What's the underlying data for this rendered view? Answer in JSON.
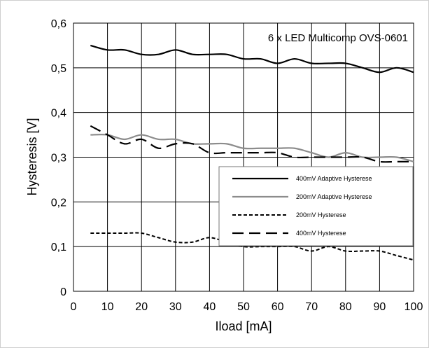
{
  "chart_data": {
    "type": "line",
    "annotation": "6 x LED Multicomp OVS-0601",
    "xlabel": "Iload [mA]",
    "ylabel": "Hysteresis [V]",
    "xlim": [
      0,
      100
    ],
    "ylim": [
      0,
      0.6
    ],
    "xticks": [
      0,
      10,
      20,
      30,
      40,
      50,
      60,
      70,
      80,
      90,
      100
    ],
    "yticks": [
      0,
      0.1,
      0.2,
      0.3,
      0.4,
      0.5,
      0.6
    ],
    "xtick_labels": [
      "0",
      "10",
      "20",
      "30",
      "40",
      "50",
      "60",
      "70",
      "80",
      "90",
      "100"
    ],
    "ytick_labels": [
      "0",
      "0,1",
      "0,2",
      "0,3",
      "0,4",
      "0,5",
      "0,6"
    ],
    "grid": true,
    "legend_position": "center-right",
    "series": [
      {
        "name": "400mV Adaptive Hysterese",
        "color": "#000000",
        "style": "solid",
        "x": [
          5,
          10,
          15,
          20,
          25,
          30,
          35,
          40,
          45,
          50,
          55,
          60,
          65,
          70,
          75,
          80,
          85,
          90,
          95,
          100
        ],
        "y": [
          0.55,
          0.54,
          0.54,
          0.53,
          0.53,
          0.54,
          0.53,
          0.53,
          0.53,
          0.52,
          0.52,
          0.51,
          0.52,
          0.51,
          0.51,
          0.51,
          0.5,
          0.49,
          0.5,
          0.49
        ]
      },
      {
        "name": "200mV Adaptive Hysterese",
        "color": "#8c8c8c",
        "style": "solid",
        "x": [
          5,
          10,
          15,
          20,
          25,
          30,
          35,
          40,
          45,
          50,
          55,
          60,
          65,
          70,
          75,
          80,
          85,
          90,
          95,
          100
        ],
        "y": [
          0.35,
          0.35,
          0.34,
          0.35,
          0.34,
          0.34,
          0.33,
          0.33,
          0.33,
          0.32,
          0.32,
          0.32,
          0.32,
          0.31,
          0.3,
          0.31,
          0.3,
          0.3,
          0.3,
          0.29
        ]
      },
      {
        "name": "200mV Hysterese",
        "color": "#000000",
        "style": "dotted",
        "x": [
          5,
          10,
          15,
          20,
          25,
          30,
          35,
          40,
          45,
          50,
          55,
          60,
          65,
          70,
          75,
          80,
          85,
          90,
          95,
          100
        ],
        "y": [
          0.13,
          0.13,
          0.13,
          0.13,
          0.12,
          0.11,
          0.11,
          0.12,
          0.11,
          0.1,
          0.1,
          0.1,
          0.1,
          0.09,
          0.1,
          0.09,
          0.09,
          0.09,
          0.08,
          0.07
        ]
      },
      {
        "name": "400mV Hysterese",
        "color": "#000000",
        "style": "dashed",
        "x": [
          5,
          10,
          15,
          20,
          25,
          30,
          35,
          40,
          45,
          50,
          55,
          60,
          65,
          70,
          75,
          80,
          85,
          90,
          95,
          100
        ],
        "y": [
          0.37,
          0.35,
          0.33,
          0.34,
          0.32,
          0.33,
          0.33,
          0.31,
          0.31,
          0.31,
          0.31,
          0.31,
          0.3,
          0.3,
          0.3,
          0.3,
          0.3,
          0.29,
          0.29,
          0.29
        ]
      }
    ]
  }
}
